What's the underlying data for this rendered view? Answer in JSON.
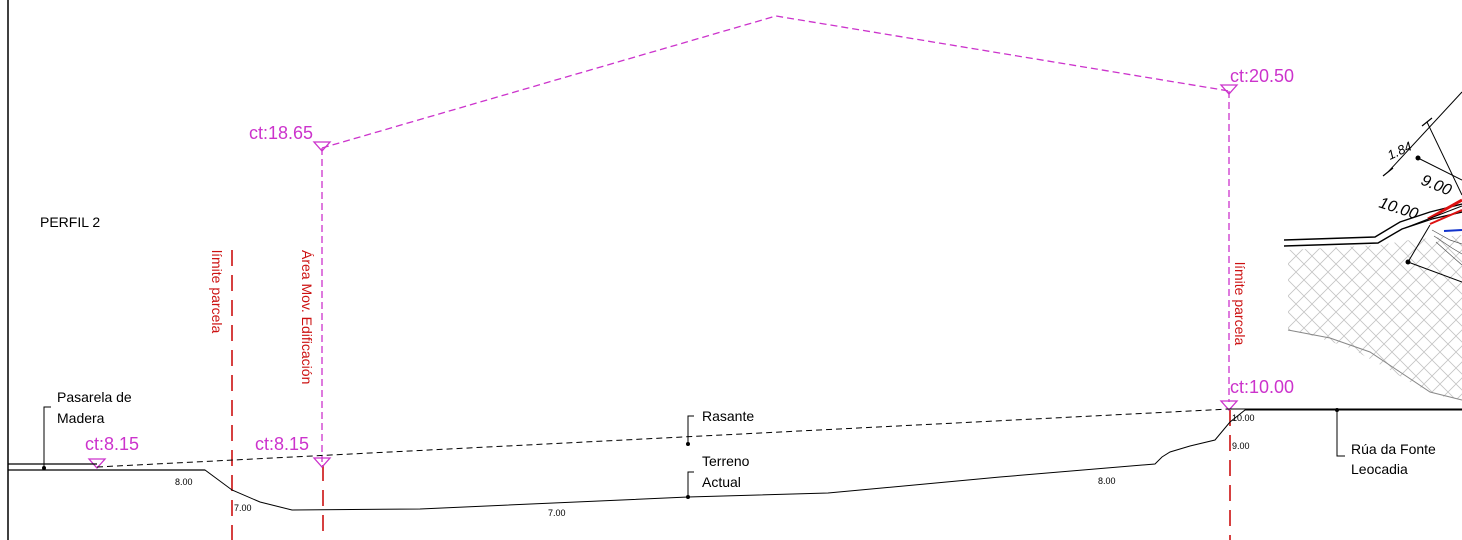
{
  "profile_title": "PERFIL 2",
  "levels": {
    "left_walkway": "ct:8.15",
    "building_left_base": "ct:8.15",
    "building_left_top": "ct:18.65",
    "building_right_top": "ct:20.50",
    "right_boundary": "ct:10.00"
  },
  "labels": {
    "boundary_left": "límite parcela",
    "building_area": "Área Mov. Edificación",
    "boundary_right": "límite parcela",
    "walkway_line1": "Pasarela de",
    "walkway_line2": "Madera",
    "grade_line": "Rasante",
    "terrain_line1": "Terreno",
    "terrain_line2": "Actual",
    "street_line1": "Rúa da Fonte",
    "street_line2": "Leocadia"
  },
  "contours": {
    "c800_left": "8.00",
    "c700_left": "7.00",
    "c700_mid": "7.00",
    "c800_right": "8.00",
    "c1000": "10.00",
    "c900": "9.00"
  },
  "detail": {
    "dim_184": "1.84",
    "dim_900": "9.00",
    "dim_1000": "10.00"
  },
  "colors": {
    "building_outline": "#cc33cc",
    "boundary": "#cc1111",
    "line": "#000000",
    "hatch": "#bbbbbb"
  }
}
